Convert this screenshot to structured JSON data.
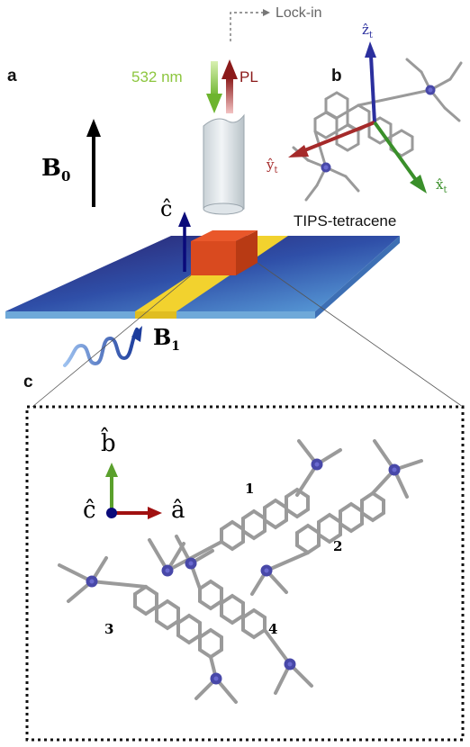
{
  "panels": {
    "a": "a",
    "b": "b",
    "c": "c"
  },
  "setup": {
    "lockin": "Lock-in",
    "excitation": "532 nm",
    "emission": "PL",
    "b0": "B",
    "b0_sub": "0",
    "b1": "B",
    "b1_sub": "1",
    "c_axis": "ĉ"
  },
  "molecule": {
    "name": "TIPS-tetracene",
    "z_axis": "ẑ",
    "z_sub": "t",
    "y_axis": "ŷ",
    "y_sub": "t",
    "x_axis": "x̂",
    "x_sub": "t"
  },
  "crystal": {
    "b_axis": "b̂",
    "c_axis": "ĉ",
    "a_axis": "â",
    "labels": [
      "1",
      "2",
      "3",
      "4"
    ]
  },
  "colors": {
    "excitation": "#8dc63f",
    "emission": "#8b1a1a",
    "z_axis": "#2b2f9e",
    "y_axis": "#a52a2a",
    "x_axis": "#3a8f2a",
    "b_axis": "#5aa02c",
    "a_axis": "#a01010",
    "c_axis_dot": "#0a0a7a",
    "stripline": "#f2d22e",
    "substrate_dark": "#2a2f7a",
    "substrate_light": "#4f9bd6"
  }
}
